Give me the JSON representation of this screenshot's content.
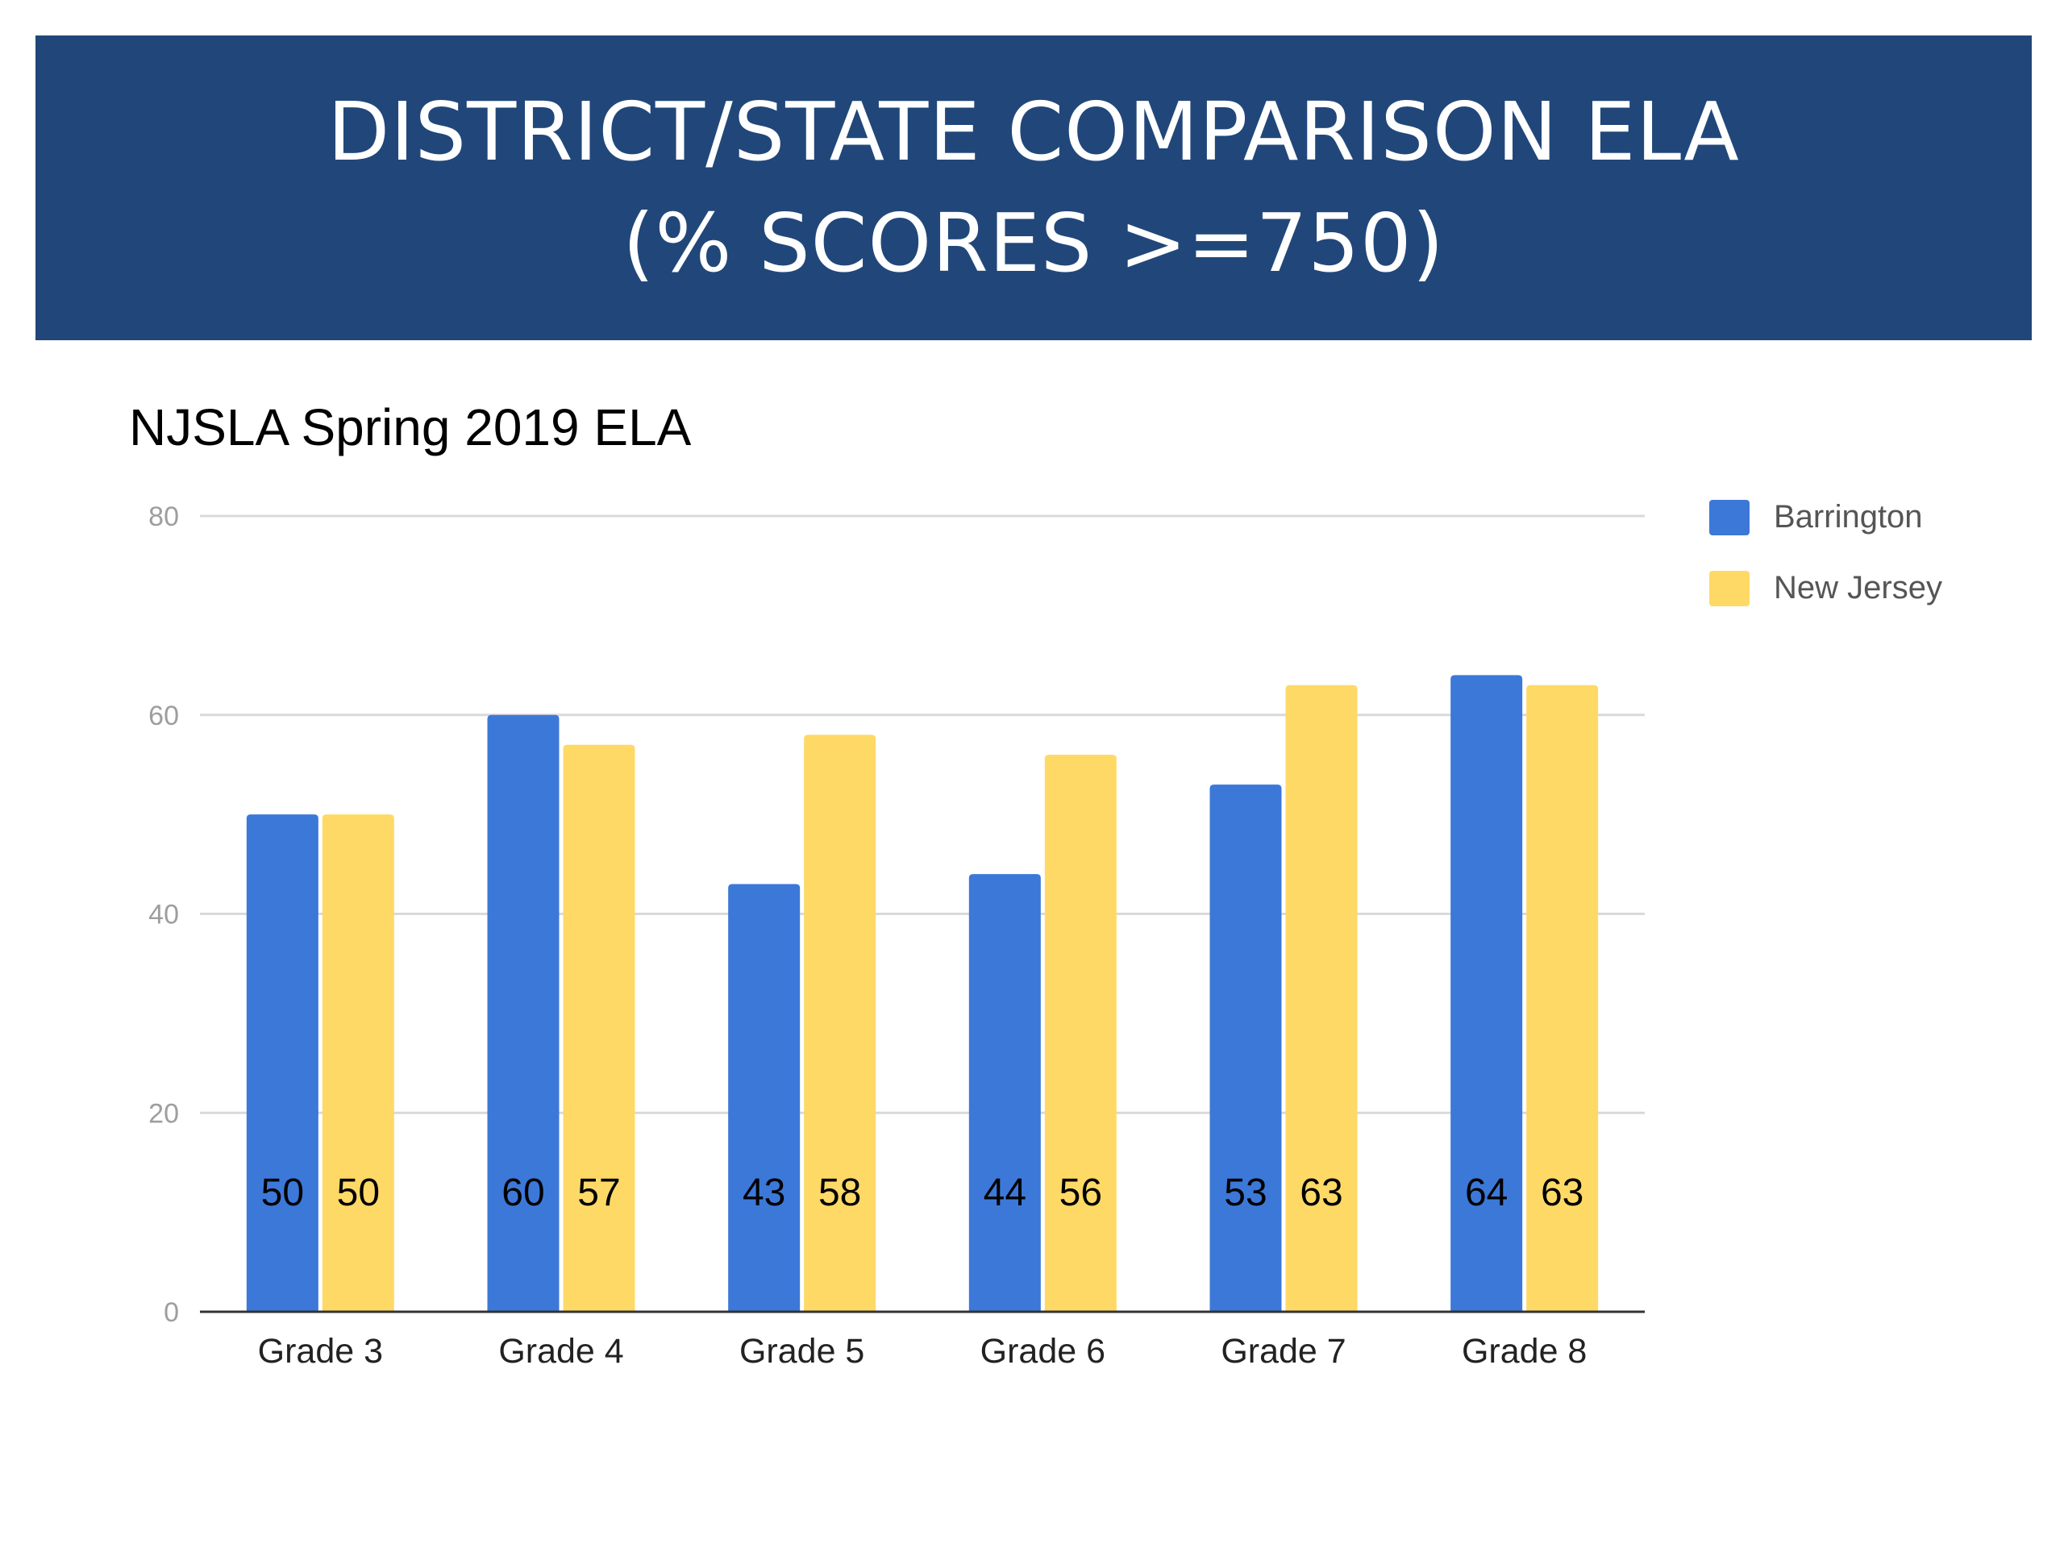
{
  "banner": {
    "line1": "DISTRICT/STATE COMPARISON ELA",
    "line2": "(% SCORES >=750)"
  },
  "chart_data": {
    "type": "bar",
    "title": "NJSLA Spring 2019 ELA",
    "xlabel": "",
    "ylabel": "",
    "ylim": [
      0,
      80
    ],
    "yticks": [
      0,
      20,
      40,
      60,
      80
    ],
    "grid": true,
    "legend_position": "right",
    "categories": [
      "Grade 3",
      "Grade 4",
      "Grade 5",
      "Grade 6",
      "Grade 7",
      "Grade 8"
    ],
    "series": [
      {
        "name": "Barrington",
        "color": "#3c78d8",
        "values": [
          50,
          60,
          43,
          44,
          53,
          64
        ]
      },
      {
        "name": "New Jersey",
        "color": "#ffd966",
        "values": [
          50,
          57,
          58,
          56,
          63,
          63
        ]
      }
    ]
  }
}
